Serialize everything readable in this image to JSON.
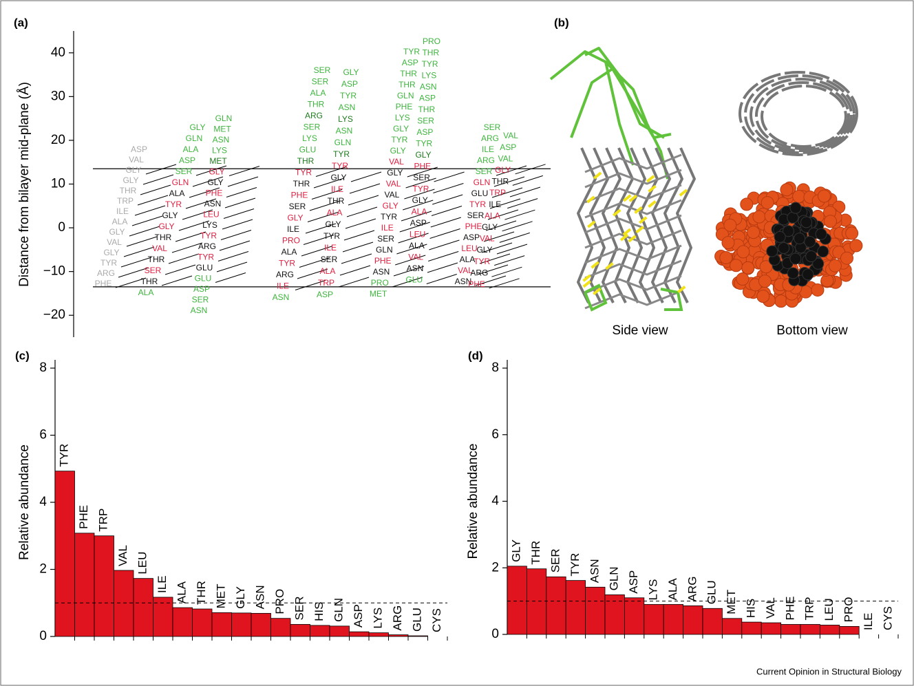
{
  "chart_data": [
    {
      "type": "residues",
      "label": "(a)",
      "ylabel": "Distance from bilayer mid-plane (Å)",
      "ylim": [
        -25,
        45
      ],
      "yticks": [
        40,
        30,
        20,
        10,
        0,
        {
          "value": -10,
          "label": "−10"
        },
        {
          "value": -20,
          "label": "−20"
        }
      ],
      "boundaries": [
        13.5,
        -13.5
      ],
      "strands": [
        {
          "residues": [
            "ASP",
            "VAL",
            "GLY",
            "GLY",
            "THR",
            "TRP",
            "ILE",
            "ALA",
            "GLY",
            "VAL",
            "GLY",
            "TYR",
            "ARG",
            "PHE"
          ],
          "colors": [
            "#aaaaaa",
            "#aaaaaa",
            "#aaaaaa",
            "#aaaaaa",
            "#aaaaaa",
            "#aaaaaa",
            "#aaaaaa",
            "#aaaaaa",
            "#aaaaaa",
            "#aaaaaa",
            "#aaaaaa",
            "#aaaaaa",
            "#aaaaaa",
            "#aaaaaa"
          ]
        },
        {
          "residues": [
            "GLY",
            "GLN",
            "ALA",
            "ASP",
            "SER",
            "GLN",
            "ALA",
            "TYR",
            "GLY",
            "GLY",
            "THR",
            "VAL",
            "THR",
            "SER",
            "THR",
            "ALA"
          ],
          "colors": [
            "#3db53d",
            "#3db53d",
            "#3db53d",
            "#3db53d",
            "#3db53d",
            "#e02040",
            "#111111",
            "#e02040",
            "#111111",
            "#e02040",
            "#111111",
            "#e02040",
            "#111111",
            "#e02040",
            "#111111",
            "#3db53d"
          ]
        },
        {
          "residues": [
            "GLN",
            "MET",
            "ASN",
            "LYS",
            "MET",
            "GLY",
            "GLY",
            "PHE",
            "ASN",
            "LEU",
            "LYS",
            "TYR",
            "ARG",
            "TYR",
            "GLU",
            "GLU",
            "ASP",
            "SER",
            "ASN"
          ],
          "colors": [
            "#3db53d",
            "#3db53d",
            "#3db53d",
            "#3db53d",
            "#1d7a1d",
            "#e02040",
            "#111111",
            "#e02040",
            "#111111",
            "#e02040",
            "#111111",
            "#e02040",
            "#111111",
            "#e02040",
            "#111111",
            "#3db53d",
            "#3db53d",
            "#3db53d",
            "#3db53d"
          ]
        },
        {
          "residues": [
            "SER",
            "SER",
            "ALA",
            "THR",
            "ARG",
            "SER",
            "LYS",
            "GLU",
            "THR",
            "TYR",
            "THR",
            "PHE",
            "SER",
            "GLY",
            "ILE",
            "PRO",
            "ALA",
            "TYR",
            "ARG",
            "ILE",
            "ASN"
          ],
          "colors": [
            "#3db53d",
            "#3db53d",
            "#3db53d",
            "#3db53d",
            "#1d7a1d",
            "#3db53d",
            "#3db53d",
            "#3db53d",
            "#1d7a1d",
            "#e02040",
            "#111111",
            "#e02040",
            "#111111",
            "#e02040",
            "#111111",
            "#e02040",
            "#111111",
            "#e02040",
            "#111111",
            "#e02040",
            "#3db53d"
          ]
        },
        {
          "residues": [
            "GLY",
            "ASP",
            "TYR",
            "ASN",
            "LYS",
            "ASN",
            "GLN",
            "TYR",
            "TYR",
            "GLY",
            "ILE",
            "THR",
            "ALA",
            "GLY",
            "TYR",
            "ILE",
            "SER",
            "ALA",
            "TRP",
            "ASP"
          ],
          "colors": [
            "#3db53d",
            "#3db53d",
            "#3db53d",
            "#3db53d",
            "#1d7a1d",
            "#3db53d",
            "#3db53d",
            "#1d7a1d",
            "#e02040",
            "#111111",
            "#e02040",
            "#111111",
            "#e02040",
            "#111111",
            "#111111",
            "#e02040",
            "#111111",
            "#e02040",
            "#e02040",
            "#3db53d"
          ]
        },
        {
          "residues": [
            "TYR",
            "ASP",
            "THR",
            "THR",
            "GLN",
            "PHE",
            "LYS",
            "GLY",
            "TYR",
            "GLY",
            "VAL",
            "GLY",
            "VAL",
            "VAL",
            "GLY",
            "TYR",
            "ILE",
            "SER",
            "GLN",
            "PHE",
            "ASN",
            "PRO",
            "MET"
          ],
          "colors": [
            "#3db53d",
            "#3db53d",
            "#3db53d",
            "#3db53d",
            "#3db53d",
            "#3db53d",
            "#3db53d",
            "#3db53d",
            "#3db53d",
            "#3db53d",
            "#e02040",
            "#111111",
            "#e02040",
            "#111111",
            "#e02040",
            "#111111",
            "#e02040",
            "#111111",
            "#111111",
            "#e02040",
            "#111111",
            "#3db53d",
            "#3db53d"
          ]
        },
        {
          "residues": [
            "PRO",
            "THR",
            "TYR",
            "LYS",
            "ASN",
            "ASP",
            "THR",
            "SER",
            "ASP",
            "TYR",
            "GLY",
            "PHE",
            "SER",
            "TYR",
            "GLY",
            "ALA",
            "ASP",
            "LEU",
            "ALA",
            "VAL",
            "ASN",
            "GLU"
          ],
          "colors": [
            "#3db53d",
            "#3db53d",
            "#3db53d",
            "#3db53d",
            "#3db53d",
            "#3db53d",
            "#3db53d",
            "#3db53d",
            "#3db53d",
            "#3db53d",
            "#1d7a1d",
            "#e02040",
            "#111111",
            "#e02040",
            "#111111",
            "#e02040",
            "#111111",
            "#e02040",
            "#111111",
            "#e02040",
            "#111111",
            "#3db53d"
          ]
        },
        {
          "residues": [
            "SER",
            "ARG",
            "ILE",
            "ARG",
            "SER",
            "GLN",
            "GLU",
            "TYR",
            "SER",
            "PHE",
            "ASP",
            "LEU",
            "ALA",
            "VAL",
            "ASN"
          ],
          "colors": [
            "#3db53d",
            "#3db53d",
            "#3db53d",
            "#3db53d",
            "#3db53d",
            "#e02040",
            "#111111",
            "#e02040",
            "#111111",
            "#e02040",
            "#111111",
            "#e02040",
            "#111111",
            "#e02040",
            "#111111"
          ]
        },
        {
          "residues": [
            "VAL",
            "ASP",
            "VAL",
            "GLY",
            "THR",
            "TRP",
            "ILE",
            "ALA",
            "GLY",
            "VAL",
            "GLY",
            "TYR",
            "ARG",
            "PHE"
          ],
          "colors": [
            "#3db53d",
            "#3db53d",
            "#3db53d",
            "#e02040",
            "#111111",
            "#e02040",
            "#111111",
            "#e02040",
            "#111111",
            "#e02040",
            "#111111",
            "#e02040",
            "#111111",
            "#e02040"
          ]
        }
      ]
    },
    {
      "type": "bar",
      "label": "(c)",
      "ylabel": "Relative abundance",
      "categories": [
        "TYR",
        "PHE",
        "TRP",
        "VAL",
        "LEU",
        "ILE",
        "ALA",
        "THR",
        "MET",
        "GLY",
        "ASN",
        "PRO",
        "SER",
        "HIS",
        "GLN",
        "ASP",
        "LYS",
        "ARG",
        "GLU",
        "CYS"
      ],
      "values": [
        4.93,
        3.08,
        3.0,
        1.97,
        1.73,
        1.17,
        0.86,
        0.82,
        0.71,
        0.7,
        0.69,
        0.54,
        0.36,
        0.33,
        0.31,
        0.14,
        0.11,
        0.05,
        0.02,
        0.0
      ],
      "color": "#e0141e",
      "ylim": [
        0,
        8
      ],
      "yticks": [
        0,
        2,
        4,
        6,
        8
      ],
      "reference_line": 1
    },
    {
      "type": "bar",
      "label": "(d)",
      "ylabel": "Relative abundance",
      "categories": [
        "GLY",
        "THR",
        "SER",
        "TYR",
        "ASN",
        "GLN",
        "ASP",
        "LYS",
        "ALA",
        "ARG",
        "GLU",
        "MET",
        "HIS",
        "VAL",
        "PHE",
        "TRP",
        "LEU",
        "PRO",
        "ILE",
        "CYS"
      ],
      "values": [
        2.05,
        1.97,
        1.73,
        1.62,
        1.42,
        1.19,
        1.1,
        0.9,
        0.9,
        0.86,
        0.78,
        0.48,
        0.37,
        0.35,
        0.3,
        0.3,
        0.28,
        0.24,
        0.0,
        0.0
      ],
      "color": "#e0141e",
      "ylim": [
        0,
        8
      ],
      "yticks": [
        0,
        2,
        4,
        6,
        8
      ],
      "reference_line": 1
    }
  ],
  "figure_b": {
    "label": "(b)",
    "captions": [
      "Side view",
      "Bottom view"
    ]
  },
  "footer": "Current Opinion in Structural Biology"
}
